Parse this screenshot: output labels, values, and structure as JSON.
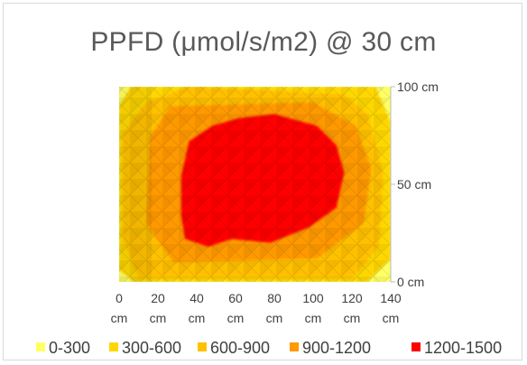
{
  "chart_data": {
    "type": "heatmap",
    "title": "PPFD (μmol/s/m2) @ 30 cm",
    "xlabel": "",
    "ylabel": "",
    "x_ticks": [
      "0",
      "20",
      "40",
      "60",
      "80",
      "100",
      "120",
      "140"
    ],
    "x_tick_unit": "cm",
    "y_ticks": [
      {
        "value": 0,
        "label": "0 cm"
      },
      {
        "value": 50,
        "label": "50 cm"
      },
      {
        "value": 100,
        "label": "100 cm"
      }
    ],
    "xlim": [
      0,
      140
    ],
    "ylim": [
      0,
      100
    ],
    "legend_position": "bottom",
    "bands": [
      {
        "label": "0-300",
        "min": 0,
        "max": 300,
        "color": "#ffff66"
      },
      {
        "label": "300-600",
        "min": 300,
        "max": 600,
        "color": "#ffd700"
      },
      {
        "label": "600-900",
        "min": 600,
        "max": 900,
        "color": "#ffc000"
      },
      {
        "label": "900-1200",
        "min": 900,
        "max": 1200,
        "color": "#ff9900"
      },
      {
        "label": "1200-1500",
        "min": 1200,
        "max": 1500,
        "color": "#ff0000"
      }
    ],
    "zones": [
      {
        "band": "0-300",
        "points": [
          [
            0,
            0
          ],
          [
            140,
            0
          ],
          [
            140,
            100
          ],
          [
            0,
            100
          ]
        ]
      },
      {
        "band": "300-600",
        "points": [
          [
            8,
            0
          ],
          [
            128,
            0
          ],
          [
            140,
            12
          ],
          [
            140,
            82
          ],
          [
            132,
            100
          ],
          [
            6,
            100
          ],
          [
            0,
            90
          ],
          [
            0,
            6
          ]
        ]
      },
      {
        "band": "600-900",
        "points": [
          [
            10,
            2
          ],
          [
            120,
            2
          ],
          [
            134,
            18
          ],
          [
            136,
            56
          ],
          [
            128,
            86
          ],
          [
            116,
            96
          ],
          [
            36,
            100
          ],
          [
            14,
            92
          ],
          [
            2,
            76
          ],
          [
            2,
            22
          ]
        ]
      },
      {
        "band": "900-1200",
        "points": [
          [
            28,
            10
          ],
          [
            102,
            12
          ],
          [
            126,
            30
          ],
          [
            130,
            58
          ],
          [
            122,
            80
          ],
          [
            100,
            92
          ],
          [
            26,
            90
          ],
          [
            16,
            74
          ],
          [
            14,
            30
          ]
        ]
      },
      {
        "band": "1200-1500",
        "points": [
          [
            34,
            22
          ],
          [
            46,
            18
          ],
          [
            58,
            22
          ],
          [
            78,
            20
          ],
          [
            98,
            28
          ],
          [
            112,
            38
          ],
          [
            116,
            56
          ],
          [
            112,
            70
          ],
          [
            102,
            80
          ],
          [
            80,
            86
          ],
          [
            62,
            84
          ],
          [
            48,
            80
          ],
          [
            36,
            72
          ],
          [
            32,
            54
          ],
          [
            32,
            34
          ]
        ]
      }
    ],
    "series": [
      {
        "name": "0-300",
        "values": []
      },
      {
        "name": "300-600",
        "values": []
      },
      {
        "name": "600-900",
        "values": []
      },
      {
        "name": "900-1200",
        "values": []
      },
      {
        "name": "1200-1500",
        "values": []
      }
    ]
  }
}
